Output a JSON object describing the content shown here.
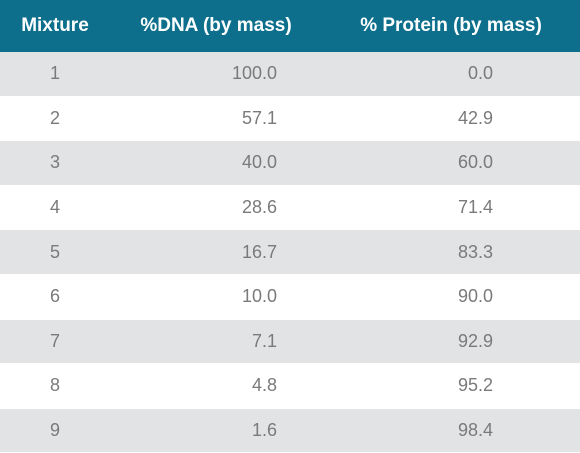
{
  "table": {
    "headers": [
      "Mixture",
      "%DNA (by mass)",
      "% Protein (by mass)"
    ],
    "rows": [
      [
        "1",
        "100.0",
        "0.0"
      ],
      [
        "2",
        "57.1",
        "42.9"
      ],
      [
        "3",
        "40.0",
        "60.0"
      ],
      [
        "4",
        "28.6",
        "71.4"
      ],
      [
        "5",
        "16.7",
        "83.3"
      ],
      [
        "6",
        "10.0",
        "90.0"
      ],
      [
        "7",
        "7.1",
        "92.9"
      ],
      [
        "8",
        "4.8",
        "95.2"
      ],
      [
        "9",
        "1.6",
        "98.4"
      ]
    ]
  },
  "colors": {
    "header_bg": "#0e6f8c",
    "header_text": "#ffffff",
    "stripe_bg": "#e2e3e5",
    "cell_text": "#7a7a7a"
  }
}
